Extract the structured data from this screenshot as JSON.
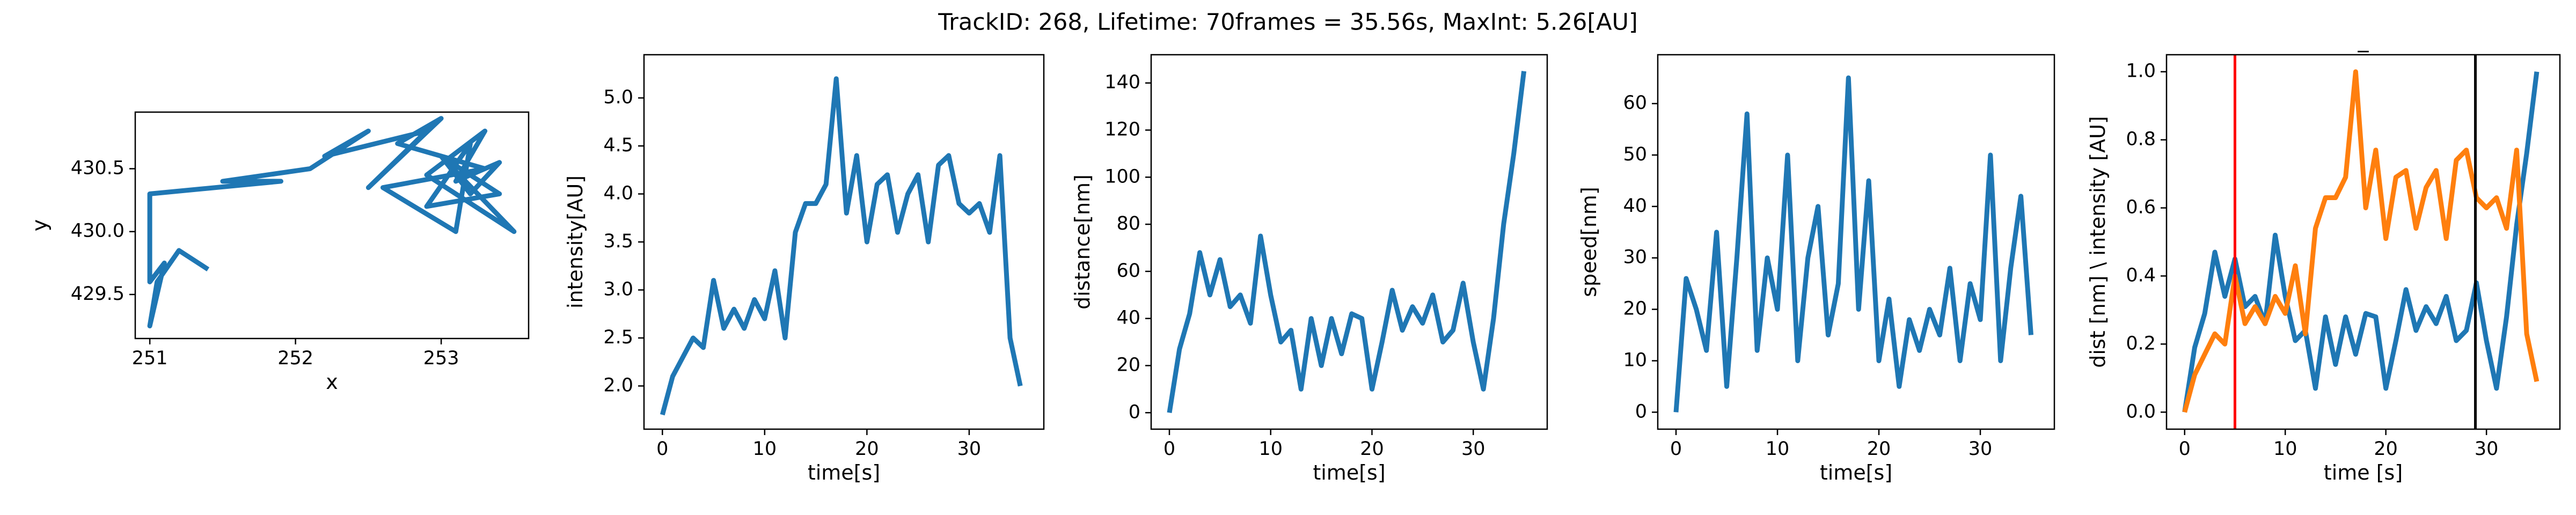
{
  "title": "TrackID: 268, Lifetime: 70frames = 35.56s, MaxInt: 5.26[AU]",
  "chart_data": [
    {
      "type": "line",
      "xlabel": "x",
      "ylabel": "y",
      "color": "#1f77b4",
      "x": [
        251.4,
        251.2,
        251.05,
        251.0,
        251.1,
        251.0,
        251.0,
        251.9,
        251.5,
        252.1,
        252.5,
        252.2,
        252.9,
        252.5,
        253.0,
        252.7,
        253.3,
        252.6,
        253.1,
        253.2,
        252.9,
        253.4,
        253.0,
        253.5,
        252.9,
        253.3,
        253.1,
        253.4,
        253.2,
        253.0
      ],
      "values": [
        429.7,
        429.85,
        429.6,
        429.25,
        429.75,
        429.6,
        430.3,
        430.4,
        430.4,
        430.5,
        430.8,
        430.6,
        430.8,
        430.35,
        430.9,
        430.7,
        430.5,
        430.35,
        430.0,
        430.7,
        430.2,
        430.3,
        430.6,
        430.0,
        430.45,
        430.8,
        430.4,
        430.55,
        430.3,
        430.6
      ],
      "xlim": [
        250.9,
        253.6
      ],
      "ylim": [
        429.15,
        430.95
      ],
      "xticks": [
        251,
        252,
        253
      ],
      "yticks": [
        429.5,
        {
          "value": 430,
          "label": "430.0"
        },
        430.5
      ]
    },
    {
      "type": "line",
      "xlabel": "time[s]",
      "ylabel": "intensity[AU]",
      "color": "#1f77b4",
      "x": [
        0,
        1,
        2,
        3,
        4,
        5,
        6,
        7,
        8,
        9,
        10,
        11,
        12,
        13,
        14,
        15,
        16,
        17,
        18,
        19,
        20,
        21,
        22,
        23,
        24,
        25,
        26,
        27,
        28,
        29,
        30,
        31,
        32,
        33,
        34,
        35
      ],
      "values": [
        1.7,
        2.1,
        2.3,
        2.5,
        2.4,
        3.1,
        2.6,
        2.8,
        2.6,
        2.9,
        2.7,
        3.2,
        2.5,
        3.6,
        3.9,
        3.9,
        4.1,
        5.2,
        3.8,
        4.4,
        3.5,
        4.1,
        4.2,
        3.6,
        4.0,
        4.2,
        3.5,
        4.3,
        4.4,
        3.9,
        3.8,
        3.9,
        3.6,
        4.4,
        2.5,
        2.0
      ],
      "xlim": [
        -1.8,
        37.3
      ],
      "ylim": [
        1.55,
        5.45
      ],
      "xticks": [
        0,
        10,
        20,
        30
      ],
      "yticks": [
        {
          "value": 2,
          "label": "2.0"
        },
        2.5,
        {
          "value": 3,
          "label": "3.0"
        },
        3.5,
        {
          "value": 4,
          "label": "4.0"
        },
        4.5,
        {
          "value": 5,
          "label": "5.0"
        }
      ]
    },
    {
      "type": "line",
      "xlabel": "time[s]",
      "ylabel": "distance[nm]",
      "color": "#1f77b4",
      "x": [
        0,
        1,
        2,
        3,
        4,
        5,
        6,
        7,
        8,
        9,
        10,
        11,
        12,
        13,
        14,
        15,
        16,
        17,
        18,
        19,
        20,
        21,
        22,
        23,
        24,
        25,
        26,
        27,
        28,
        29,
        30,
        31,
        32,
        33,
        34,
        35
      ],
      "values": [
        0,
        27,
        42,
        68,
        50,
        65,
        45,
        50,
        38,
        75,
        50,
        30,
        35,
        10,
        40,
        20,
        40,
        25,
        42,
        40,
        10,
        30,
        52,
        35,
        45,
        38,
        50,
        30,
        35,
        55,
        30,
        10,
        40,
        80,
        110,
        145
      ],
      "xlim": [
        -1.8,
        37.3
      ],
      "ylim": [
        -7,
        152
      ],
      "xticks": [
        0,
        10,
        20,
        30
      ],
      "yticks": [
        0,
        20,
        40,
        60,
        80,
        100,
        120,
        140
      ]
    },
    {
      "type": "line",
      "xlabel": "time[s]",
      "ylabel": "speed[nm]",
      "color": "#1f77b4",
      "x": [
        0,
        1,
        2,
        3,
        4,
        5,
        6,
        7,
        8,
        9,
        10,
        11,
        12,
        13,
        14,
        15,
        16,
        17,
        18,
        19,
        20,
        21,
        22,
        23,
        24,
        25,
        26,
        27,
        28,
        29,
        30,
        31,
        32,
        33,
        34,
        35
      ],
      "values": [
        0,
        26,
        20,
        12,
        35,
        5,
        30,
        58,
        12,
        30,
        20,
        50,
        10,
        30,
        40,
        15,
        25,
        65,
        20,
        45,
        10,
        22,
        5,
        18,
        12,
        20,
        15,
        28,
        10,
        25,
        18,
        50,
        10,
        28,
        42,
        15
      ],
      "xlim": [
        -1.8,
        37.3
      ],
      "ylim": [
        -3.3,
        69.5
      ],
      "xticks": [
        0,
        10,
        20,
        30
      ],
      "yticks": [
        0,
        10,
        20,
        30,
        40,
        50,
        60
      ]
    },
    {
      "type": "line",
      "title": "_",
      "xlabel": "time [s]",
      "ylabel": "dist [nm] \\ intensity [AU]",
      "x": [
        0,
        1,
        2,
        3,
        4,
        5,
        6,
        7,
        8,
        9,
        10,
        11,
        12,
        13,
        14,
        15,
        16,
        17,
        18,
        19,
        20,
        21,
        22,
        23,
        24,
        25,
        26,
        27,
        28,
        29,
        30,
        31,
        32,
        33,
        34,
        35
      ],
      "series": [
        {
          "color": "#1f77b4",
          "values": [
            0,
            0.19,
            0.29,
            0.47,
            0.34,
            0.45,
            0.31,
            0.34,
            0.26,
            0.52,
            0.34,
            0.21,
            0.24,
            0.07,
            0.28,
            0.14,
            0.28,
            0.17,
            0.29,
            0.28,
            0.07,
            0.21,
            0.36,
            0.24,
            0.31,
            0.26,
            0.34,
            0.21,
            0.24,
            0.38,
            0.21,
            0.07,
            0.28,
            0.55,
            0.76,
            1.0
          ]
        },
        {
          "color": "#ff7f0e",
          "values": [
            0,
            0.11,
            0.17,
            0.23,
            0.2,
            0.4,
            0.26,
            0.31,
            0.26,
            0.34,
            0.29,
            0.43,
            0.23,
            0.54,
            0.63,
            0.63,
            0.69,
            1.0,
            0.6,
            0.77,
            0.51,
            0.69,
            0.71,
            0.54,
            0.66,
            0.71,
            0.51,
            0.74,
            0.77,
            0.63,
            0.6,
            0.63,
            0.54,
            0.77,
            0.23,
            0.09
          ]
        }
      ],
      "vlines": [
        {
          "value": 5,
          "color": "red"
        },
        {
          "value": 28.9,
          "color": "black"
        }
      ],
      "xlim": [
        -1.8,
        37.3
      ],
      "ylim": [
        -0.05,
        1.05
      ],
      "xticks": [
        0,
        10,
        20,
        30
      ],
      "yticks": [
        {
          "value": 0,
          "label": "0.0"
        },
        0.2,
        0.4,
        0.6,
        0.8,
        {
          "value": 1,
          "label": "1.0"
        }
      ]
    }
  ]
}
